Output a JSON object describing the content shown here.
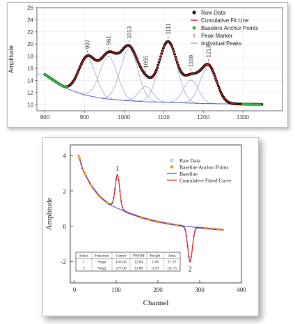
{
  "chart_data": [
    {
      "type": "line",
      "ylabel": "Amplitude",
      "xlim": [
        780,
        1400
      ],
      "ylim": [
        9,
        26
      ],
      "xticks": [
        800,
        900,
        1000,
        1100,
        1200,
        1300
      ],
      "yticks": [
        10,
        12,
        14,
        16,
        18,
        20,
        22,
        24,
        26
      ],
      "legend": {
        "placement": "top-right",
        "entries": [
          "Raw Data",
          "Cumulative Fit Line",
          "Baseline Anchor Points",
          "Peak Marker",
          "Individual Peaks"
        ]
      },
      "baseline": {
        "x": [
          800,
          850,
          900,
          950,
          1000,
          1050,
          1100,
          1150,
          1200,
          1250,
          1300,
          1350
        ],
        "values": [
          15.0,
          12.8,
          11.6,
          11.0,
          10.7,
          10.5,
          10.4,
          10.3,
          10.2,
          10.15,
          10.1,
          10.05
        ]
      },
      "peaks": [
        {
          "label": "907",
          "center": 907,
          "height": 6.2,
          "fwhm": 50
        },
        {
          "label": "961",
          "center": 961,
          "height": 7.0,
          "fwhm": 52
        },
        {
          "label": "1013",
          "center": 1013,
          "height": 8.5,
          "fwhm": 52
        },
        {
          "label": "1055",
          "center": 1055,
          "height": 2.5,
          "fwhm": 42
        },
        {
          "label": "1111",
          "center": 1111,
          "height": 10.0,
          "fwhm": 54
        },
        {
          "label": "1169",
          "center": 1169,
          "height": 3.8,
          "fwhm": 44
        },
        {
          "label": "1213",
          "center": 1213,
          "height": 6.2,
          "fwhm": 48
        }
      ],
      "anchor_points_x": [
        800,
        804,
        808,
        812,
        816,
        820,
        824,
        828,
        832,
        836,
        840,
        844,
        848,
        852,
        856,
        1300,
        1305,
        1310,
        1315,
        1320,
        1325,
        1330,
        1335,
        1340,
        1345
      ],
      "colors": {
        "raw": "#000000",
        "fit": "#e8211e",
        "anchor": "#2fbf3c",
        "peak_marker": "#d04040",
        "individual": "#8e9ad0",
        "baseline": "#3a4fc8"
      }
    },
    {
      "type": "line",
      "xlabel": "Channel",
      "ylabel": "Amplitude",
      "xlim": [
        -10,
        400
      ],
      "ylim": [
        -3.2,
        4.6
      ],
      "xticks": [
        0,
        100,
        200,
        300,
        400
      ],
      "yticks": [
        -2,
        0,
        2,
        4
      ],
      "legend": {
        "placement": "top-right",
        "entries": [
          "Raw Data",
          "Baseline Anchor Points",
          "Baseline",
          "Cumulative Fitted Curve"
        ]
      },
      "baseline": {
        "x": [
          10,
          20,
          40,
          60,
          80,
          100,
          130,
          160,
          200,
          250,
          300,
          355
        ],
        "values": [
          4.0,
          3.2,
          2.3,
          1.7,
          1.3,
          1.05,
          0.75,
          0.5,
          0.25,
          0.05,
          -0.08,
          -0.2
        ]
      },
      "peaks": [
        {
          "label": "1",
          "center": 103,
          "height": 1.88,
          "fwhm": 12.84
        },
        {
          "label": "2",
          "center": 277,
          "height": -1.97,
          "fwhm": 13.08
        }
      ],
      "anchor_points_x": [
        12,
        25,
        40,
        60,
        78,
        160,
        180,
        200,
        225,
        245,
        315,
        330,
        345,
        355
      ],
      "table": {
        "headers": [
          "Index",
          "Function",
          "Center",
          "FWHM",
          "Height",
          "Area"
        ],
        "rows": [
          [
            "1",
            "Voigt",
            "103.00",
            "12.84",
            "1.88",
            "27.37"
          ],
          [
            "2",
            "Voigt",
            "277.00",
            "13.08",
            "-1.97",
            "-31.75"
          ]
        ]
      },
      "colors": {
        "raw": "#3d52c6",
        "anchor": "#f39a1c",
        "baseline": "#2f3fc2",
        "fit": "#e0241f"
      }
    }
  ]
}
